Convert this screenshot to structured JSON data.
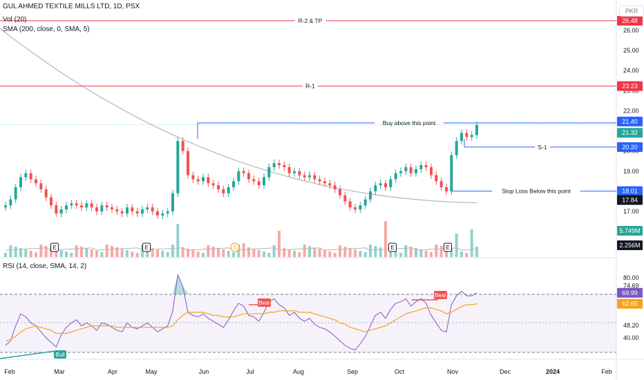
{
  "header": {
    "symbol": "GUL AHMED TEXTILE MILLS LTD, 1D, PSX",
    "vol": "Vol (20)",
    "sma": "SMA (200, close, 0, SMA, 5)",
    "rsi": "RSI (14, close, SMA, 14, 2)",
    "currency": "PKR"
  },
  "colors": {
    "up": "#26a69a",
    "down": "#ef5350",
    "resistance": "#f23645",
    "support": "#2962ff",
    "sma": "#b2b5be",
    "rsi": "#7e57c2",
    "rsi_ma": "#f7a21b",
    "price": "#2b2b43"
  },
  "chart_data": [
    {
      "type": "candlestick",
      "title": "GUL AHMED TEXTILE MILLS LTD, 1D, PSX",
      "x_labels": [
        "Feb",
        "Mar",
        "Apr",
        "May",
        "Jun",
        "Jul",
        "Aug",
        "Sep",
        "Oct",
        "Nov",
        "Dec",
        "2024",
        "Feb"
      ],
      "y_ticks": [
        "26.00",
        "25.00",
        "24.00",
        "23.00",
        "22.00",
        "21.00",
        "20.00",
        "19.00",
        "18.00",
        "17.00"
      ],
      "ylim": [
        16.0,
        27.0
      ],
      "close_series": [
        17.3,
        17.6,
        18.2,
        18.7,
        18.9,
        18.6,
        18.4,
        18.1,
        17.7,
        17.3,
        16.9,
        17.1,
        17.3,
        17.4,
        17.3,
        17.2,
        17.4,
        17.2,
        17.0,
        17.3,
        17.2,
        17.1,
        17.0,
        16.9,
        17.2,
        17.0,
        16.9,
        17.1,
        17.2,
        17.0,
        16.8,
        16.9,
        17.0,
        17.9,
        20.5,
        20.0,
        18.8,
        18.6,
        18.5,
        18.7,
        18.4,
        18.3,
        18.1,
        17.9,
        18.2,
        18.5,
        19.0,
        18.9,
        18.6,
        18.5,
        18.3,
        18.7,
        19.2,
        19.4,
        19.3,
        19.2,
        18.9,
        19.0,
        18.8,
        18.7,
        18.8,
        18.6,
        18.5,
        18.4,
        18.3,
        18.1,
        17.8,
        17.5,
        17.2,
        17.1,
        17.3,
        17.6,
        18.0,
        18.3,
        18.4,
        18.2,
        18.6,
        18.9,
        19.0,
        19.2,
        18.9,
        19.1,
        19.3,
        19.2,
        18.8,
        18.5,
        18.2,
        18.0,
        19.8,
        20.5,
        20.9,
        20.7,
        20.8,
        21.3
      ],
      "volume": "5.749M",
      "volume_ma": "2.256M"
    },
    {
      "type": "line",
      "title": "RSI (14, close, SMA, 14, 2)",
      "y_ticks": [
        "80.00",
        "48.20",
        "40.00"
      ],
      "ylim": [
        30,
        84
      ],
      "series": [
        {
          "name": "RSI",
          "values": [
            35,
            38,
            48,
            56,
            54,
            50,
            48,
            44,
            40,
            37,
            34,
            42,
            47,
            50,
            52,
            48,
            50,
            48,
            45,
            50,
            49,
            47,
            45,
            44,
            50,
            47,
            46,
            48,
            50,
            47,
            44,
            46,
            48,
            58,
            82,
            74,
            57,
            55,
            54,
            56,
            53,
            51,
            49,
            47,
            52,
            58,
            63,
            61,
            55,
            54,
            51,
            57,
            64,
            66,
            62,
            60,
            55,
            57,
            53,
            51,
            53,
            49,
            47,
            46,
            44,
            41,
            38,
            35,
            33,
            32,
            36,
            41,
            48,
            55,
            57,
            53,
            59,
            63,
            64,
            66,
            61,
            64,
            66,
            63,
            55,
            50,
            45,
            44,
            62,
            68,
            71,
            68,
            68,
            70
          ]
        },
        {
          "name": "RSI-based MA",
          "values": [
            38,
            39,
            41,
            44,
            46,
            47,
            48,
            47,
            46,
            45,
            43,
            43,
            43,
            44,
            45,
            46,
            47,
            48,
            48,
            48,
            48,
            48,
            47,
            47,
            47,
            47,
            47,
            47,
            47,
            47,
            47,
            47,
            47,
            48,
            52,
            55,
            57,
            57,
            57,
            57,
            56,
            55,
            55,
            54,
            54,
            54,
            55,
            56,
            56,
            56,
            56,
            56,
            57,
            57,
            58,
            58,
            58,
            58,
            57,
            57,
            57,
            56,
            55,
            54,
            53,
            52,
            50,
            49,
            47,
            46,
            45,
            44,
            45,
            46,
            47,
            48,
            50,
            52,
            54,
            56,
            57,
            58,
            59,
            60,
            60,
            59,
            58,
            56,
            57,
            59,
            61,
            62,
            62,
            62.65
          ]
        }
      ]
    }
  ],
  "levels": [
    {
      "label": "R-2 & TP",
      "value": "26.48"
    },
    {
      "label": "R-1",
      "value": "23.23"
    },
    {
      "label": "Buy above this point",
      "value": "21.40"
    },
    {
      "label": "S-1",
      "value": "20.20"
    },
    {
      "label": "Stop Loss Below this point",
      "value": "18.01"
    }
  ],
  "price_labels": {
    "last_close": "21.32",
    "sma_value": "17.84",
    "rsi_value": "69.99",
    "rsi_ma_value": "62.65",
    "rsi_ticks_extra": "74.69"
  },
  "markers": {
    "earnings": "E",
    "dividend": "S",
    "bull": "Bull",
    "bear": "Bear"
  }
}
